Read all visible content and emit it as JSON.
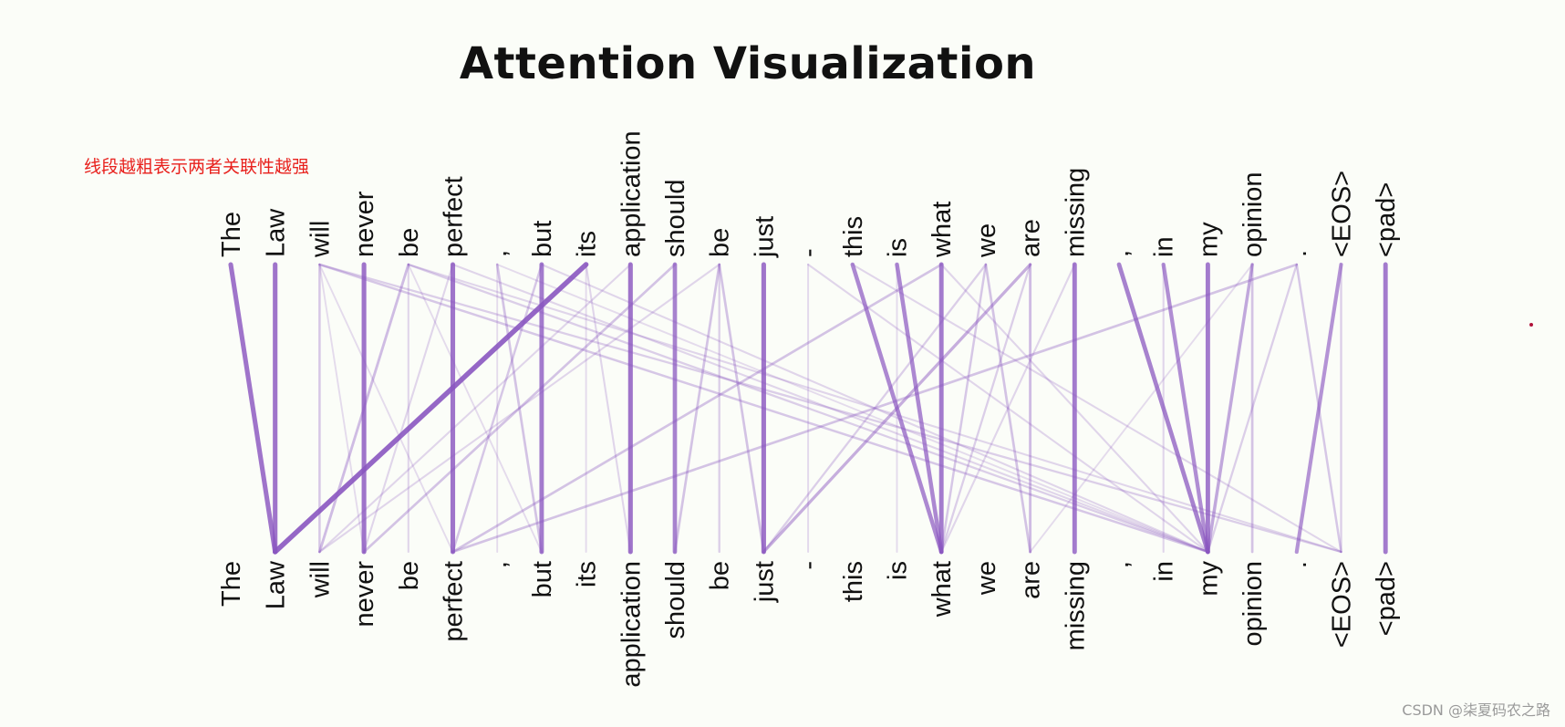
{
  "title": "Attention Visualization",
  "annotation": "线段越粗表示两者关联性越强",
  "watermark": "CSDN @柒夏码农之路",
  "tokens_top": [
    "The",
    "Law",
    "will",
    "never",
    "be",
    "perfect",
    ",",
    "but",
    "its",
    "application",
    "should",
    "be",
    "just",
    "-",
    "this",
    "is",
    "what",
    "we",
    "are",
    "missing",
    ",",
    "in",
    "my",
    "opinion",
    ".",
    "<EOS>",
    "<pad>"
  ],
  "tokens_bottom": [
    "The",
    "Law",
    "will",
    "never",
    "be",
    "perfect",
    ",",
    "but",
    "its",
    "application",
    "should",
    "be",
    "just",
    "-",
    "this",
    "is",
    "what",
    "we",
    "are",
    "missing",
    ",",
    "in",
    "my",
    "opinion",
    ".",
    "<EOS>",
    "<pad>"
  ],
  "line_color": "#8a56c0",
  "attention": [
    {
      "from": 0,
      "to": 1,
      "weight": 0.9
    },
    {
      "from": 1,
      "to": 1,
      "weight": 0.9
    },
    {
      "from": 2,
      "to": 2,
      "weight": 0.25
    },
    {
      "from": 2,
      "to": 22,
      "weight": 0.25
    },
    {
      "from": 2,
      "to": 25,
      "weight": 0.2
    },
    {
      "from": 2,
      "to": 3,
      "weight": 0.1
    },
    {
      "from": 2,
      "to": 5,
      "weight": 0.1
    },
    {
      "from": 3,
      "to": 3,
      "weight": 0.9
    },
    {
      "from": 4,
      "to": 2,
      "weight": 0.35
    },
    {
      "from": 4,
      "to": 4,
      "weight": 0.15
    },
    {
      "from": 4,
      "to": 22,
      "weight": 0.2
    },
    {
      "from": 4,
      "to": 25,
      "weight": 0.15
    },
    {
      "from": 4,
      "to": 7,
      "weight": 0.1
    },
    {
      "from": 5,
      "to": 5,
      "weight": 0.9
    },
    {
      "from": 5,
      "to": 3,
      "weight": 0.15
    },
    {
      "from": 5,
      "to": 22,
      "weight": 0.15
    },
    {
      "from": 6,
      "to": 6,
      "weight": 0.1
    },
    {
      "from": 6,
      "to": 7,
      "weight": 0.3
    },
    {
      "from": 6,
      "to": 22,
      "weight": 0.1
    },
    {
      "from": 7,
      "to": 7,
      "weight": 0.85
    },
    {
      "from": 7,
      "to": 5,
      "weight": 0.25
    },
    {
      "from": 7,
      "to": 22,
      "weight": 0.15
    },
    {
      "from": 8,
      "to": 1,
      "weight": 1.0
    },
    {
      "from": 8,
      "to": 8,
      "weight": 0.1
    },
    {
      "from": 8,
      "to": 9,
      "weight": 0.15
    },
    {
      "from": 9,
      "to": 9,
      "weight": 0.9
    },
    {
      "from": 9,
      "to": 2,
      "weight": 0.15
    },
    {
      "from": 10,
      "to": 10,
      "weight": 0.8
    },
    {
      "from": 10,
      "to": 3,
      "weight": 0.3
    },
    {
      "from": 11,
      "to": 10,
      "weight": 0.3
    },
    {
      "from": 11,
      "to": 11,
      "weight": 0.2
    },
    {
      "from": 11,
      "to": 12,
      "weight": 0.3
    },
    {
      "from": 11,
      "to": 2,
      "weight": 0.15
    },
    {
      "from": 12,
      "to": 12,
      "weight": 0.9
    },
    {
      "from": 13,
      "to": 13,
      "weight": 0.12
    },
    {
      "from": 13,
      "to": 22,
      "weight": 0.15
    },
    {
      "from": 14,
      "to": 16,
      "weight": 0.75
    },
    {
      "from": 14,
      "to": 25,
      "weight": 0.15
    },
    {
      "from": 15,
      "to": 16,
      "weight": 0.75
    },
    {
      "from": 15,
      "to": 15,
      "weight": 0.1
    },
    {
      "from": 16,
      "to": 16,
      "weight": 0.85
    },
    {
      "from": 16,
      "to": 5,
      "weight": 0.3
    },
    {
      "from": 16,
      "to": 22,
      "weight": 0.15
    },
    {
      "from": 17,
      "to": 16,
      "weight": 0.25
    },
    {
      "from": 17,
      "to": 18,
      "weight": 0.3
    },
    {
      "from": 17,
      "to": 12,
      "weight": 0.2
    },
    {
      "from": 18,
      "to": 12,
      "weight": 0.45
    },
    {
      "from": 18,
      "to": 18,
      "weight": 0.35
    },
    {
      "from": 18,
      "to": 16,
      "weight": 0.2
    },
    {
      "from": 19,
      "to": 19,
      "weight": 0.85
    },
    {
      "from": 19,
      "to": 16,
      "weight": 0.15
    },
    {
      "from": 20,
      "to": 22,
      "weight": 0.8
    },
    {
      "from": 21,
      "to": 22,
      "weight": 0.7
    },
    {
      "from": 21,
      "to": 21,
      "weight": 0.15
    },
    {
      "from": 22,
      "to": 22,
      "weight": 0.85
    },
    {
      "from": 23,
      "to": 22,
      "weight": 0.5
    },
    {
      "from": 23,
      "to": 23,
      "weight": 0.3
    },
    {
      "from": 23,
      "to": 18,
      "weight": 0.1
    },
    {
      "from": 24,
      "to": 5,
      "weight": 0.3
    },
    {
      "from": 24,
      "to": 25,
      "weight": 0.25
    },
    {
      "from": 24,
      "to": 22,
      "weight": 0.2
    },
    {
      "from": 25,
      "to": 24,
      "weight": 0.65
    },
    {
      "from": 25,
      "to": 25,
      "weight": 0.2
    },
    {
      "from": 26,
      "to": 26,
      "weight": 0.85
    }
  ]
}
